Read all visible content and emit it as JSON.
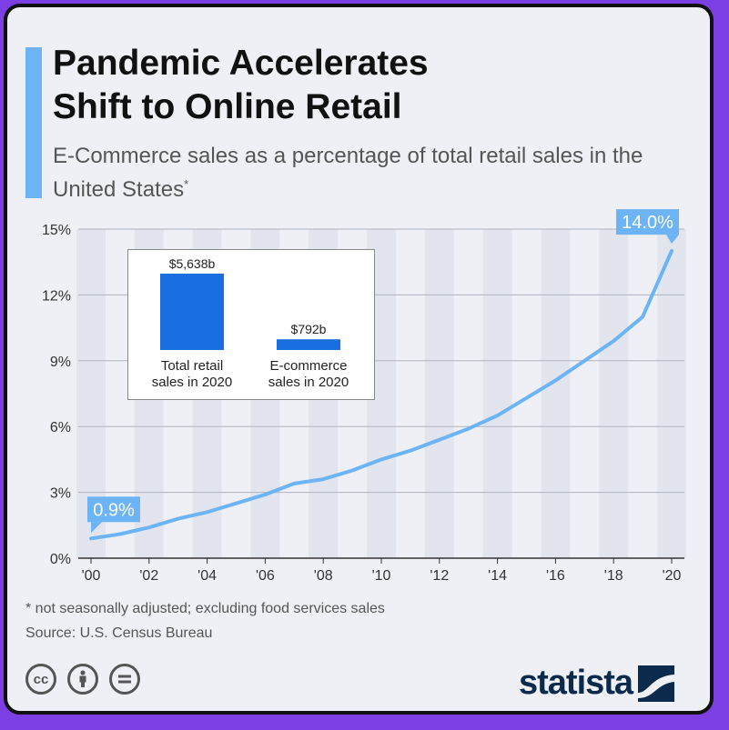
{
  "header": {
    "title_line1": "Pandemic Accelerates",
    "title_line2": "Shift to Online Retail",
    "subtitle": "E-Commerce sales as a percentage of total retail sales in the United States",
    "subtitle_marker": "*"
  },
  "footer": {
    "footnote": "* not seasonally adjusted; excluding food services sales",
    "source": "Source: U.S. Census Bureau",
    "brand": "statista",
    "license_icons": [
      "cc-icon",
      "by-icon",
      "nd-icon"
    ]
  },
  "colors": {
    "line": "#6cb4f5",
    "bar": "#1a6fe0",
    "callout": "#6cb4f5",
    "accent": "#6cb4f5"
  },
  "chart_data": [
    {
      "type": "line",
      "title": "",
      "xlabel": "",
      "ylabel": "",
      "x": [
        2000,
        2001,
        2002,
        2003,
        2004,
        2005,
        2006,
        2007,
        2008,
        2009,
        2010,
        2011,
        2012,
        2013,
        2014,
        2015,
        2016,
        2017,
        2018,
        2019,
        2020
      ],
      "x_tick_labels": [
        "'00",
        "'02",
        "'04",
        "'06",
        "'08",
        "'10",
        "'12",
        "'14",
        "'16",
        "'18",
        "'20"
      ],
      "x_tick_years": [
        2000,
        2002,
        2004,
        2006,
        2008,
        2010,
        2012,
        2014,
        2016,
        2018,
        2020
      ],
      "series": [
        {
          "values": [
            0.9,
            1.1,
            1.4,
            1.8,
            2.1,
            2.5,
            2.9,
            3.4,
            3.6,
            4.0,
            4.5,
            4.9,
            5.4,
            5.9,
            6.5,
            7.3,
            8.1,
            9.0,
            9.9,
            11.0,
            14.0
          ]
        }
      ],
      "y_ticks": [
        0,
        3,
        6,
        9,
        12,
        15
      ],
      "y_tick_labels": [
        "0%",
        "3%",
        "6%",
        "9%",
        "12%",
        "15%"
      ],
      "ylim": [
        0,
        15
      ],
      "grid": true,
      "callouts": [
        {
          "label": "0.9%",
          "year": 2000,
          "value": 0.9
        },
        {
          "label": "14.0%",
          "year": 2020,
          "value": 14.0
        }
      ]
    },
    {
      "type": "bar",
      "title": "",
      "categories": [
        "Total retail sales in 2020",
        "E-commerce sales in 2020"
      ],
      "category_lines": [
        [
          "Total retail",
          "sales in 2020"
        ],
        [
          "E-commerce",
          "sales in 2020"
        ]
      ],
      "values": [
        5638,
        792
      ],
      "value_labels": [
        "$5,638b",
        "$792b"
      ],
      "unit": "billion USD"
    }
  ]
}
